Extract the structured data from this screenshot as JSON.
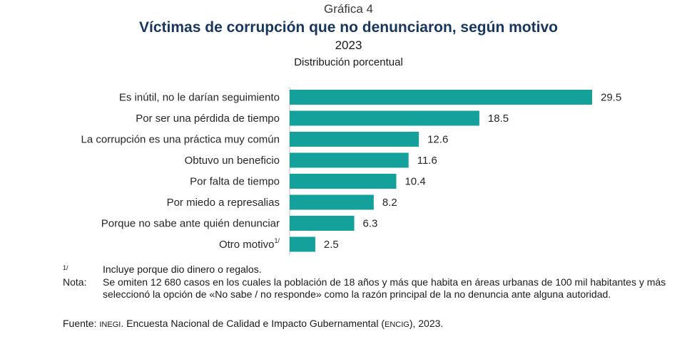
{
  "header": {
    "kicker": "Gráfica 4",
    "title": "Víctimas de corrupción que no denunciaron, según motivo",
    "year": "2023",
    "unit": "Distribución porcentual"
  },
  "chart_data": {
    "type": "bar",
    "orientation": "horizontal",
    "categories": [
      "Es inútil, no le darían seguimiento",
      "Por ser una pérdida de tiempo",
      "La corrupción es una práctica muy común",
      "Obtuvo un beneficio",
      "Por falta de tiempo",
      "Por miedo a represalias",
      "Porque no sabe ante quién denunciar",
      "Otro motivo"
    ],
    "category_footnotes": [
      "",
      "",
      "",
      "",
      "",
      "",
      "",
      "1/"
    ],
    "values": [
      29.5,
      18.5,
      12.6,
      11.6,
      10.4,
      8.2,
      6.3,
      2.5
    ],
    "value_labels": [
      "29.5",
      "18.5",
      "12.6",
      "11.6",
      "10.4",
      "8.2",
      "6.3",
      "2.5"
    ],
    "xlim": [
      0,
      29.5
    ],
    "grid": false,
    "bar_color": "#14a19b"
  },
  "notes": {
    "footnote_key": "1/",
    "footnote_text": "Incluye porque dio dinero o regalos.",
    "nota_key": "Nota:",
    "nota_text": "Se omiten 12 680 casos en los cuales la población de 18 años y más que habita en áreas urbanas de 100 mil habitantes y más seleccionó la opción de «No sabe / no responde» como la razón principal de la no denuncia ante alguna autoridad.",
    "source_key": "Fuente:",
    "source_org": "INEGI",
    "source_mid": ". Encuesta Nacional de Calidad e Impacto Gubernamental (",
    "source_abbr": "ENCIG",
    "source_end": "), 2023."
  }
}
